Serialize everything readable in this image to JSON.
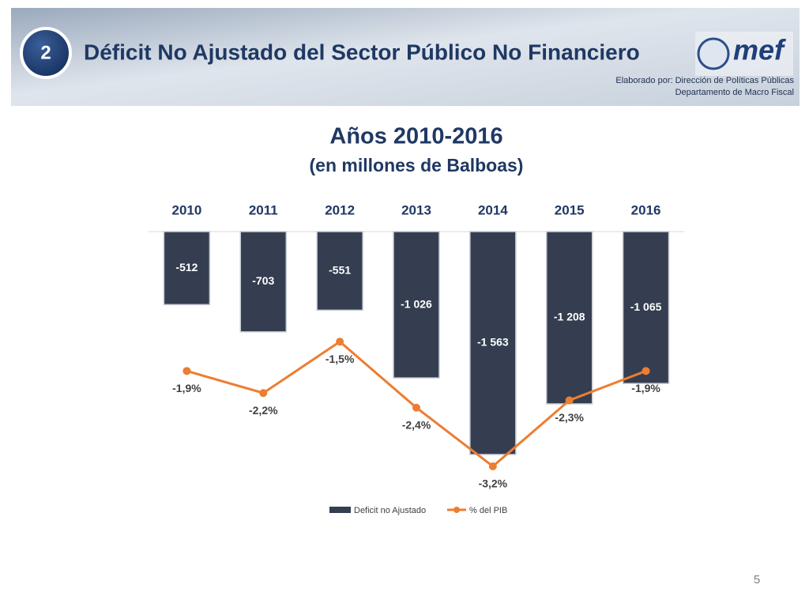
{
  "header": {
    "number": "2",
    "title": "Déficit No Ajustado del Sector Público No Financiero",
    "logo": "mef",
    "credit_lines": [
      "Elaborado por: Dirección de Políticas Públicas",
      "Departamento de Macro Fiscal"
    ]
  },
  "chart_data": {
    "type": "bar",
    "title": "Años 2010-2016",
    "subtitle": "(en millones de Balboas)",
    "categories": [
      "2010",
      "2011",
      "2012",
      "2013",
      "2014",
      "2015",
      "2016"
    ],
    "series": [
      {
        "name": "Deficit no Ajustado",
        "color": "#343e50",
        "values": [
          -512,
          -703,
          -551,
          -1026,
          -1563,
          -1208,
          -1065
        ],
        "value_labels": [
          "-512",
          "-703",
          "-551",
          "-1 026",
          "-1 563",
          "-1 208",
          "-1 065"
        ]
      },
      {
        "name": "% del PIB",
        "color": "#ed7d31",
        "axis": "y2",
        "values": [
          -1.9,
          -2.2,
          -1.5,
          -2.4,
          -3.2,
          -2.3,
          -1.9
        ],
        "value_labels": [
          "-1,9%",
          "-2,2%",
          "-1,5%",
          "-2,4%",
          "-3,2%",
          "-2,3%",
          "-1,9%"
        ]
      }
    ],
    "legend": "bottom"
  },
  "page_number": "5"
}
